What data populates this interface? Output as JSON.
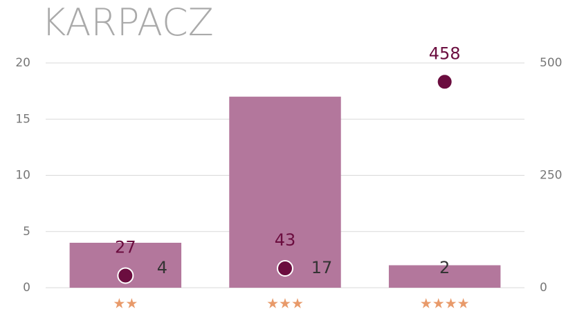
{
  "chart_data": {
    "type": "bar",
    "title": "KARPACZ",
    "categories": [
      "★★",
      "★★★",
      "★★★★"
    ],
    "series": [
      {
        "type": "bar",
        "color": "#b3779c",
        "values": [
          4,
          17,
          2
        ]
      },
      {
        "type": "scatter",
        "axis": "y2",
        "color": "#6b0d3f",
        "values": [
          27,
          43,
          458
        ]
      }
    ],
    "ylim": [
      0,
      20
    ],
    "yticks": [
      0,
      5,
      10,
      15,
      20
    ],
    "y2lim": [
      0,
      500
    ],
    "y2ticks": [
      0,
      250,
      500
    ],
    "grid": true
  }
}
